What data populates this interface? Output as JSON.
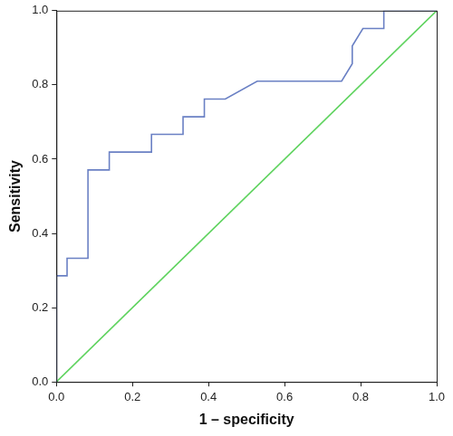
{
  "chart_data": {
    "type": "line",
    "x_label": "1 – specificity",
    "y_label": "Sensitivity",
    "xlim": [
      0,
      1
    ],
    "ylim": [
      0,
      1
    ],
    "xticks": [
      {
        "value": 0,
        "label": "0.0"
      },
      0.2,
      0.4,
      0.6,
      0.8,
      {
        "value": 1,
        "label": "1.0"
      }
    ],
    "yticks": [
      {
        "value": 0,
        "label": "0.0"
      },
      0.2,
      0.4,
      0.6,
      0.8,
      {
        "value": 1,
        "label": "1.0"
      }
    ],
    "grid": false,
    "series": [
      {
        "color": "#6a80c4",
        "line_style": "solid",
        "x": [
          0,
          0,
          0.028,
          0.028,
          0.083,
          0.083,
          0.139,
          0.139,
          0.25,
          0.25,
          0.333,
          0.333,
          0.389,
          0.389,
          0.444,
          0.528,
          0.75,
          0.778,
          0.778,
          0.806,
          0.861,
          0.861,
          1
        ],
        "values": [
          0,
          0.286,
          0.286,
          0.333,
          0.333,
          0.571,
          0.571,
          0.619,
          0.619,
          0.667,
          0.667,
          0.714,
          0.714,
          0.762,
          0.762,
          0.81,
          0.81,
          0.857,
          0.905,
          0.952,
          0.952,
          1,
          1
        ]
      },
      {
        "color": "#5fd35f",
        "line_style": "solid",
        "x": [
          0,
          1
        ],
        "values": [
          0,
          1
        ]
      }
    ]
  }
}
